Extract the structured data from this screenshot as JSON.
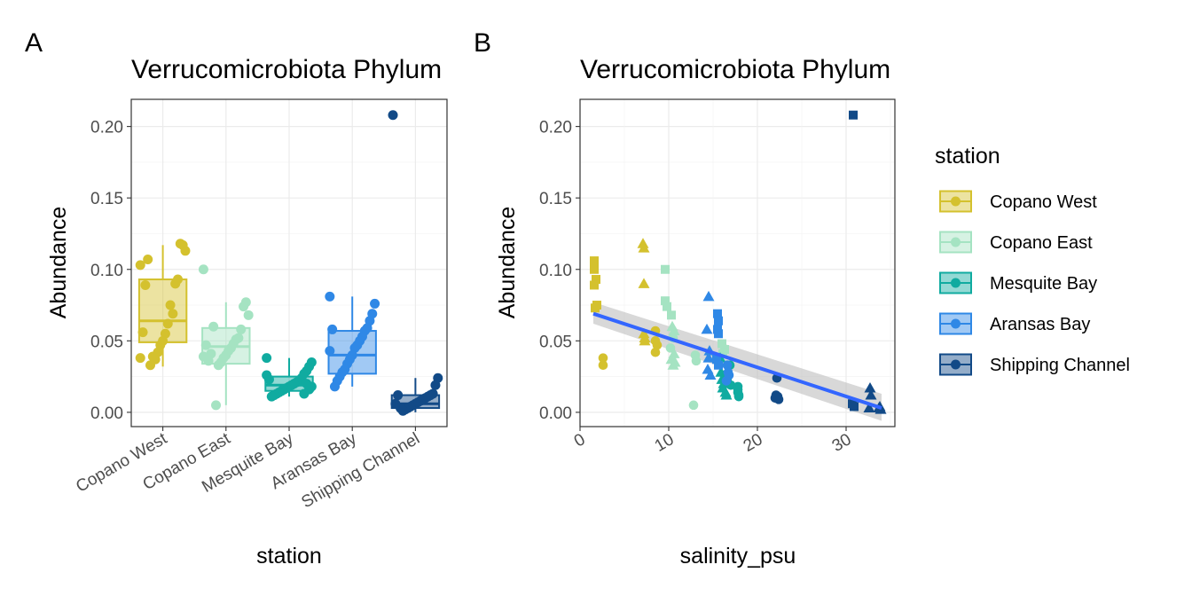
{
  "colors": {
    "Copano West": "#D4C12E",
    "Copano East": "#A5E3C2",
    "Mesquite Bay": "#10ABA0",
    "Aransas Bay": "#2F88E6",
    "Shipping Channel": "#124A87",
    "trend_line": "#3366FF",
    "ribbon": "#BEBEBE"
  },
  "chart_data": [
    {
      "panel": "A",
      "type": "box",
      "title": "Verrucomicrobiota Phylum",
      "xlabel": "station",
      "ylabel": "Abundance",
      "ylim": [
        -0.01,
        0.219
      ],
      "yticks": [
        "0.00",
        "0.05",
        "0.10",
        "0.15",
        "0.20"
      ],
      "categories": [
        "Copano West",
        "Copano East",
        "Mesquite Bay",
        "Aransas Bay",
        "Shipping Channel"
      ],
      "boxes": [
        {
          "name": "Copano West",
          "whisker_low": 0.032,
          "q1": 0.049,
          "median": 0.064,
          "q3": 0.093,
          "whisker_high": 0.117,
          "points": [
            0.103,
            0.113,
            0.117,
            0.118,
            0.093,
            0.09,
            0.069,
            0.075,
            0.062,
            0.055,
            0.05,
            0.047,
            0.042,
            0.037,
            0.039,
            0.033,
            0.107,
            0.089,
            0.056,
            0.038
          ]
        },
        {
          "name": "Copano East",
          "whisker_low": 0.005,
          "q1": 0.034,
          "median": 0.046,
          "q3": 0.059,
          "whisker_high": 0.077,
          "points": [
            0.1,
            0.068,
            0.077,
            0.074,
            0.058,
            0.052,
            0.051,
            0.048,
            0.045,
            0.043,
            0.04,
            0.038,
            0.035,
            0.033,
            0.005,
            0.06,
            0.041,
            0.036,
            0.047,
            0.039
          ]
        },
        {
          "name": "Mesquite Bay",
          "whisker_low": 0.011,
          "q1": 0.015,
          "median": 0.019,
          "q3": 0.025,
          "whisker_high": 0.038,
          "points": [
            0.038,
            0.035,
            0.032,
            0.029,
            0.027,
            0.024,
            0.022,
            0.021,
            0.02,
            0.019,
            0.018,
            0.017,
            0.016,
            0.015,
            0.014,
            0.013,
            0.012,
            0.011,
            0.023,
            0.026,
            0.018,
            0.016,
            0.02,
            0.013
          ]
        },
        {
          "name": "Aransas Bay",
          "whisker_low": 0.018,
          "q1": 0.027,
          "median": 0.04,
          "q3": 0.057,
          "whisker_high": 0.081,
          "points": [
            0.081,
            0.076,
            0.069,
            0.064,
            0.059,
            0.057,
            0.053,
            0.05,
            0.047,
            0.045,
            0.04,
            0.037,
            0.034,
            0.03,
            0.028,
            0.025,
            0.022,
            0.018,
            0.058,
            0.043
          ]
        },
        {
          "name": "Shipping Channel",
          "whisker_low": 0.0,
          "q1": 0.003,
          "median": 0.006,
          "q3": 0.012,
          "whisker_high": 0.024,
          "points": [
            0.208,
            0.024,
            0.019,
            0.013,
            0.012,
            0.011,
            0.01,
            0.009,
            0.008,
            0.007,
            0.006,
            0.005,
            0.004,
            0.003,
            0.002,
            0.001,
            0.003,
            0.012,
            0.006
          ]
        }
      ]
    },
    {
      "panel": "B",
      "type": "scatter",
      "title": "Verrucomicrobiota Phylum",
      "xlabel": "salinity_psu",
      "ylabel": "Abundance",
      "xlim": [
        0,
        35.5
      ],
      "ylim": [
        -0.01,
        0.219
      ],
      "xticks": [
        "0",
        "10",
        "20",
        "30"
      ],
      "yticks": [
        "0.00",
        "0.05",
        "0.10",
        "0.15",
        "0.20"
      ],
      "trend": {
        "x": [
          1.5,
          34
        ],
        "y": [
          0.069,
          0.003
        ],
        "ci_start": [
          0.062,
          0.077
        ],
        "ci_end": [
          -0.006,
          0.013
        ]
      },
      "series": [
        {
          "name": "Copano West",
          "points": [
            {
              "x": 1.6,
              "y": 0.106,
              "shape": "square"
            },
            {
              "x": 1.6,
              "y": 0.1,
              "shape": "square"
            },
            {
              "x": 1.8,
              "y": 0.093,
              "shape": "square"
            },
            {
              "x": 1.6,
              "y": 0.089,
              "shape": "square"
            },
            {
              "x": 1.7,
              "y": 0.073,
              "shape": "square"
            },
            {
              "x": 1.9,
              "y": 0.075,
              "shape": "square"
            },
            {
              "x": 2.6,
              "y": 0.038,
              "shape": "circle"
            },
            {
              "x": 2.6,
              "y": 0.033,
              "shape": "circle"
            },
            {
              "x": 7.1,
              "y": 0.118,
              "shape": "triangle"
            },
            {
              "x": 7.2,
              "y": 0.115,
              "shape": "triangle"
            },
            {
              "x": 7.2,
              "y": 0.09,
              "shape": "triangle"
            },
            {
              "x": 7.2,
              "y": 0.055,
              "shape": "triangle"
            },
            {
              "x": 7.3,
              "y": 0.05,
              "shape": "triangle"
            },
            {
              "x": 7.3,
              "y": 0.052,
              "shape": "triangle"
            },
            {
              "x": 8.5,
              "y": 0.057,
              "shape": "circle"
            },
            {
              "x": 8.5,
              "y": 0.05,
              "shape": "circle"
            },
            {
              "x": 8.5,
              "y": 0.042,
              "shape": "circle"
            },
            {
              "x": 8.7,
              "y": 0.047,
              "shape": "circle"
            }
          ]
        },
        {
          "name": "Copano East",
          "points": [
            {
              "x": 9.6,
              "y": 0.1,
              "shape": "square"
            },
            {
              "x": 9.6,
              "y": 0.078,
              "shape": "square"
            },
            {
              "x": 9.8,
              "y": 0.074,
              "shape": "square"
            },
            {
              "x": 10.3,
              "y": 0.068,
              "shape": "square"
            },
            {
              "x": 10.4,
              "y": 0.06,
              "shape": "triangle"
            },
            {
              "x": 10.6,
              "y": 0.057,
              "shape": "triangle"
            },
            {
              "x": 10.5,
              "y": 0.052,
              "shape": "circle"
            },
            {
              "x": 10.2,
              "y": 0.045,
              "shape": "circle"
            },
            {
              "x": 10.6,
              "y": 0.041,
              "shape": "triangle"
            },
            {
              "x": 10.3,
              "y": 0.037,
              "shape": "triangle"
            },
            {
              "x": 10.7,
              "y": 0.035,
              "shape": "triangle"
            },
            {
              "x": 10.5,
              "y": 0.033,
              "shape": "triangle"
            },
            {
              "x": 12.8,
              "y": 0.005,
              "shape": "circle"
            },
            {
              "x": 13.0,
              "y": 0.04,
              "shape": "circle"
            },
            {
              "x": 13.1,
              "y": 0.036,
              "shape": "circle"
            },
            {
              "x": 16.0,
              "y": 0.048,
              "shape": "square"
            },
            {
              "x": 16.3,
              "y": 0.044,
              "shape": "square"
            },
            {
              "x": 16.1,
              "y": 0.041,
              "shape": "square"
            }
          ]
        },
        {
          "name": "Mesquite Bay",
          "points": [
            {
              "x": 15.8,
              "y": 0.038,
              "shape": "triangle"
            },
            {
              "x": 15.9,
              "y": 0.028,
              "shape": "triangle"
            },
            {
              "x": 16.0,
              "y": 0.023,
              "shape": "triangle"
            },
            {
              "x": 16.2,
              "y": 0.02,
              "shape": "triangle"
            },
            {
              "x": 16.1,
              "y": 0.017,
              "shape": "triangle"
            },
            {
              "x": 16.4,
              "y": 0.014,
              "shape": "triangle"
            },
            {
              "x": 16.5,
              "y": 0.012,
              "shape": "triangle"
            },
            {
              "x": 16.3,
              "y": 0.026,
              "shape": "square"
            },
            {
              "x": 16.6,
              "y": 0.022,
              "shape": "square"
            },
            {
              "x": 16.9,
              "y": 0.033,
              "shape": "circle"
            },
            {
              "x": 17.0,
              "y": 0.019,
              "shape": "circle"
            },
            {
              "x": 17.8,
              "y": 0.018,
              "shape": "circle"
            },
            {
              "x": 17.8,
              "y": 0.016,
              "shape": "circle"
            },
            {
              "x": 17.8,
              "y": 0.014,
              "shape": "circle"
            },
            {
              "x": 17.9,
              "y": 0.012,
              "shape": "circle"
            },
            {
              "x": 17.9,
              "y": 0.011,
              "shape": "circle"
            }
          ]
        },
        {
          "name": "Aransas Bay",
          "points": [
            {
              "x": 14.5,
              "y": 0.081,
              "shape": "triangle"
            },
            {
              "x": 14.3,
              "y": 0.058,
              "shape": "triangle"
            },
            {
              "x": 14.6,
              "y": 0.043,
              "shape": "triangle"
            },
            {
              "x": 14.4,
              "y": 0.03,
              "shape": "triangle"
            },
            {
              "x": 14.7,
              "y": 0.026,
              "shape": "triangle"
            },
            {
              "x": 14.5,
              "y": 0.038,
              "shape": "triangle"
            },
            {
              "x": 15.5,
              "y": 0.069,
              "shape": "square"
            },
            {
              "x": 15.6,
              "y": 0.064,
              "shape": "square"
            },
            {
              "x": 15.5,
              "y": 0.058,
              "shape": "square"
            },
            {
              "x": 15.6,
              "y": 0.055,
              "shape": "square"
            },
            {
              "x": 15.4,
              "y": 0.037,
              "shape": "square"
            },
            {
              "x": 15.6,
              "y": 0.033,
              "shape": "square"
            },
            {
              "x": 16.6,
              "y": 0.033,
              "shape": "circle"
            },
            {
              "x": 16.7,
              "y": 0.028,
              "shape": "circle"
            },
            {
              "x": 16.8,
              "y": 0.026,
              "shape": "circle"
            },
            {
              "x": 16.5,
              "y": 0.022,
              "shape": "circle"
            }
          ]
        },
        {
          "name": "Shipping Channel",
          "points": [
            {
              "x": 30.8,
              "y": 0.208,
              "shape": "square"
            },
            {
              "x": 22.2,
              "y": 0.024,
              "shape": "circle"
            },
            {
              "x": 22.1,
              "y": 0.012,
              "shape": "circle"
            },
            {
              "x": 22.3,
              "y": 0.011,
              "shape": "circle"
            },
            {
              "x": 22.0,
              "y": 0.01,
              "shape": "circle"
            },
            {
              "x": 22.4,
              "y": 0.009,
              "shape": "circle"
            },
            {
              "x": 22.2,
              "y": 0.01,
              "shape": "circle"
            },
            {
              "x": 30.7,
              "y": 0.006,
              "shape": "square"
            },
            {
              "x": 30.9,
              "y": 0.004,
              "shape": "square"
            },
            {
              "x": 32.7,
              "y": 0.017,
              "shape": "triangle"
            },
            {
              "x": 32.8,
              "y": 0.012,
              "shape": "triangle"
            },
            {
              "x": 32.6,
              "y": 0.003,
              "shape": "triangle"
            },
            {
              "x": 33.8,
              "y": 0.004,
              "shape": "triangle"
            },
            {
              "x": 33.9,
              "y": 0.002,
              "shape": "triangle"
            },
            {
              "x": 33.7,
              "y": 0.003,
              "shape": "triangle"
            }
          ]
        }
      ]
    }
  ],
  "panel_tags": [
    "A",
    "B"
  ],
  "legend": {
    "title": "station",
    "items": [
      "Copano West",
      "Copano East",
      "Mesquite Bay",
      "Aransas Bay",
      "Shipping Channel"
    ]
  }
}
